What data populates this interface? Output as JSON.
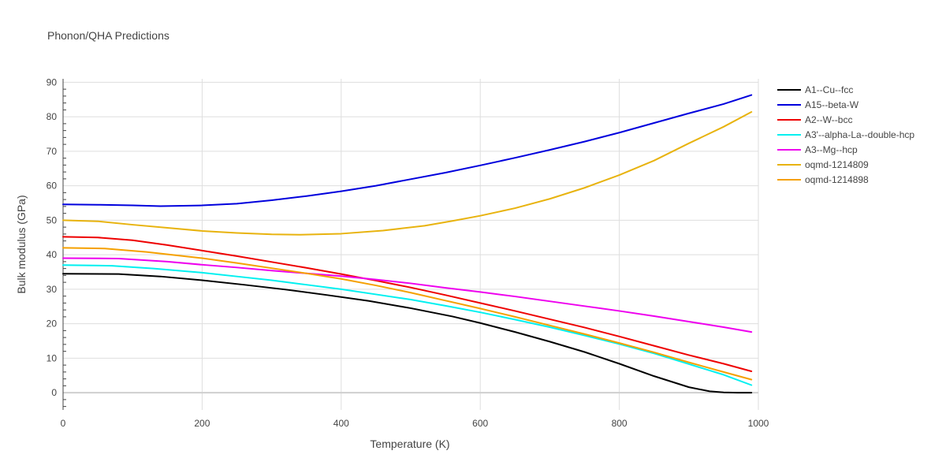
{
  "chart_data": {
    "type": "line",
    "title": "Phonon/QHA Predictions",
    "xlabel": "Temperature (K)",
    "ylabel": "Bulk modulus (GPa)",
    "xlim": [
      0,
      1000
    ],
    "ylim": [
      -5,
      91
    ],
    "xticks": [
      0,
      200,
      400,
      600,
      800,
      1000
    ],
    "yticks": [
      0,
      10,
      20,
      30,
      40,
      50,
      60,
      70,
      80,
      90
    ],
    "grid": true,
    "legend_position": "right",
    "series": [
      {
        "name": "A1--Cu--fcc",
        "color": "#000000",
        "x": [
          0,
          80,
          140,
          200,
          260,
          320,
          380,
          440,
          500,
          560,
          600,
          650,
          700,
          750,
          800,
          850,
          900,
          930,
          950,
          970,
          990
        ],
        "y": [
          34.5,
          34.4,
          33.7,
          32.6,
          31.3,
          29.9,
          28.3,
          26.6,
          24.5,
          22.1,
          20.2,
          17.6,
          14.8,
          11.8,
          8.4,
          4.8,
          1.6,
          0.4,
          0.1,
          0.0,
          0.0
        ]
      },
      {
        "name": "A15--beta-W",
        "color": "#0000dd",
        "x": [
          0,
          50,
          100,
          140,
          200,
          250,
          300,
          350,
          400,
          450,
          500,
          550,
          600,
          650,
          700,
          750,
          800,
          850,
          900,
          950,
          990
        ],
        "y": [
          54.6,
          54.5,
          54.3,
          54.1,
          54.3,
          54.8,
          55.8,
          57.0,
          58.4,
          60.0,
          61.9,
          63.8,
          65.9,
          68.1,
          70.4,
          72.8,
          75.4,
          78.2,
          81.0,
          83.7,
          86.3
        ]
      },
      {
        "name": "A2--W--bcc",
        "color": "#ee0000",
        "x": [
          0,
          50,
          100,
          150,
          200,
          250,
          300,
          350,
          400,
          450,
          500,
          550,
          600,
          650,
          700,
          750,
          800,
          850,
          900,
          950,
          990
        ],
        "y": [
          45.2,
          45.0,
          44.2,
          42.8,
          41.2,
          39.6,
          37.9,
          36.2,
          34.4,
          32.5,
          30.5,
          28.3,
          26.0,
          23.7,
          21.3,
          18.9,
          16.3,
          13.6,
          10.9,
          8.4,
          6.2
        ]
      },
      {
        "name": "A3'--alpha-La--double-hcp",
        "color": "#00f0f0",
        "x": [
          0,
          70,
          130,
          200,
          250,
          300,
          350,
          400,
          450,
          500,
          550,
          600,
          650,
          700,
          750,
          800,
          850,
          900,
          950,
          990
        ],
        "y": [
          37.0,
          36.8,
          36.0,
          34.8,
          33.7,
          32.6,
          31.3,
          30.0,
          28.5,
          27.0,
          25.2,
          23.3,
          21.2,
          19.0,
          16.6,
          14.1,
          11.4,
          8.3,
          5.2,
          2.2
        ]
      },
      {
        "name": "A3--Mg--hcp",
        "color": "#ee00ee",
        "x": [
          0,
          80,
          150,
          200,
          250,
          300,
          350,
          400,
          450,
          500,
          550,
          600,
          650,
          700,
          750,
          800,
          850,
          900,
          950,
          990
        ],
        "y": [
          39.0,
          38.9,
          38.0,
          37.1,
          36.3,
          35.4,
          34.6,
          33.8,
          32.8,
          31.7,
          30.4,
          29.2,
          27.9,
          26.5,
          25.1,
          23.7,
          22.2,
          20.6,
          19.0,
          17.6
        ]
      },
      {
        "name": "oqmd-1214809",
        "color": "#e8b30e",
        "x": [
          0,
          50,
          100,
          150,
          200,
          250,
          300,
          340,
          400,
          460,
          520,
          560,
          600,
          650,
          700,
          750,
          800,
          850,
          900,
          950,
          990
        ],
        "y": [
          50.0,
          49.7,
          48.7,
          47.8,
          46.9,
          46.3,
          45.9,
          45.8,
          46.1,
          47.0,
          48.4,
          49.8,
          51.3,
          53.5,
          56.2,
          59.4,
          63.1,
          67.3,
          72.3,
          77.1,
          81.4
        ]
      },
      {
        "name": "oqmd-1214898",
        "color": "#f5a000",
        "x": [
          0,
          60,
          120,
          200,
          250,
          300,
          350,
          400,
          450,
          500,
          550,
          600,
          650,
          700,
          750,
          800,
          850,
          900,
          950,
          990
        ],
        "y": [
          42.0,
          41.8,
          40.8,
          39.0,
          37.6,
          36.1,
          34.6,
          33.0,
          31.1,
          29.0,
          26.7,
          24.4,
          22.0,
          19.5,
          17.0,
          14.4,
          11.7,
          8.8,
          6.0,
          3.8
        ]
      }
    ]
  }
}
